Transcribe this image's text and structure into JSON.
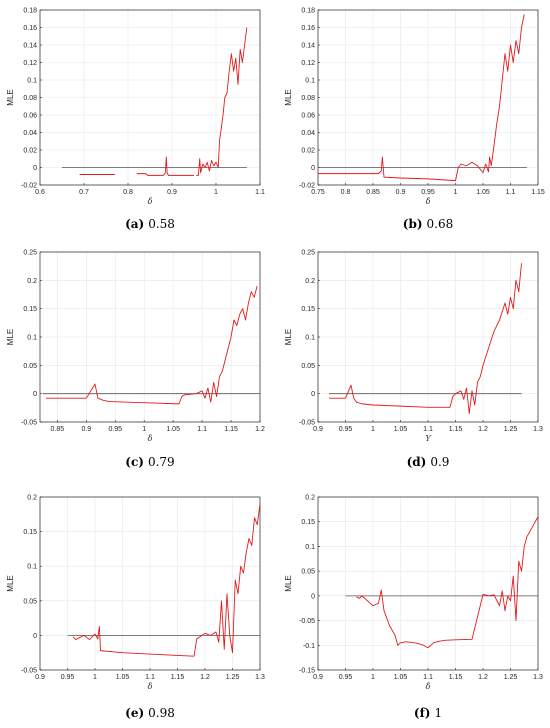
{
  "chart_data": [
    {
      "type": "line",
      "caption_tag": "(a)",
      "caption_value": "0.58",
      "xlabel": "δ",
      "ylabel": "MLE",
      "xlim": [
        0.6,
        1.1
      ],
      "ylim": [
        -0.02,
        0.18
      ],
      "xticks": [
        "0.6",
        "0.7",
        "0.8",
        "0.9",
        "1",
        "1.1"
      ],
      "yticks": [
        "-0.02",
        "0",
        "0.02",
        "0.04",
        "0.06",
        "0.08",
        "0.1",
        "0.12",
        "0.14",
        "0.16",
        "0.18"
      ],
      "grid": true,
      "zero_line": [
        0.65,
        1.07
      ],
      "x": [
        0.69,
        0.77,
        null,
        0.82,
        0.84,
        0.845,
        0.86,
        0.88,
        0.885,
        0.887,
        0.889,
        0.892,
        0.95,
        null,
        0.955,
        0.96,
        0.963,
        0.965,
        0.97,
        0.975,
        0.98,
        0.985,
        0.99,
        0.995,
        1.0,
        1.005,
        1.008,
        1.012,
        1.016,
        1.02,
        1.025,
        1.03,
        1.035,
        1.04,
        1.045,
        1.05,
        1.055,
        1.06,
        1.065,
        1.07
      ],
      "values": [
        -0.008,
        -0.008,
        null,
        -0.007,
        -0.007,
        -0.009,
        -0.009,
        -0.009,
        -0.006,
        0.012,
        -0.006,
        -0.009,
        -0.009,
        null,
        -0.009,
        -0.009,
        0.01,
        -0.006,
        0.004,
        0.0,
        0.006,
        -0.004,
        0.008,
        0.002,
        0.006,
        0.0,
        0.03,
        0.045,
        0.06,
        0.08,
        0.085,
        0.11,
        0.13,
        0.11,
        0.125,
        0.095,
        0.135,
        0.12,
        0.14,
        0.16
      ]
    },
    {
      "type": "line",
      "caption_tag": "(b)",
      "caption_value": "0.68",
      "xlabel": "δ",
      "ylabel": "MLE",
      "xlim": [
        0.75,
        1.15
      ],
      "ylim": [
        -0.02,
        0.18
      ],
      "xticks": [
        "0.75",
        "0.8",
        "0.85",
        "0.9",
        "0.95",
        "1",
        "1.05",
        "1.1",
        "1.15"
      ],
      "yticks": [
        "-0.02",
        "0",
        "0.02",
        "0.04",
        "0.06",
        "0.08",
        "0.1",
        "0.12",
        "0.14",
        "0.16",
        "0.18"
      ],
      "grid": true,
      "zero_line": [
        0.75,
        1.13
      ],
      "x": [
        0.75,
        0.86,
        0.865,
        0.867,
        0.87,
        0.9,
        0.95,
        1.0,
        1.005,
        1.01,
        1.02,
        1.03,
        1.04,
        1.05,
        1.055,
        1.06,
        1.062,
        1.065,
        1.07,
        1.075,
        1.08,
        1.085,
        1.09,
        1.095,
        1.1,
        1.105,
        1.11,
        1.115,
        1.12,
        1.125
      ],
      "values": [
        -0.007,
        -0.007,
        -0.004,
        0.012,
        -0.011,
        -0.012,
        -0.013,
        -0.015,
        0.0,
        0.004,
        0.002,
        0.006,
        0.002,
        -0.006,
        0.004,
        -0.005,
        0.012,
        0.002,
        0.025,
        0.05,
        0.07,
        0.1,
        0.13,
        0.11,
        0.14,
        0.12,
        0.145,
        0.13,
        0.16,
        0.175
      ]
    },
    {
      "type": "line",
      "caption_tag": "(c)",
      "caption_value": "0.79",
      "xlabel": "δ",
      "ylabel": "MLE",
      "xlim": [
        0.82,
        1.2
      ],
      "ylim": [
        -0.05,
        0.25
      ],
      "xticks": [
        "0.85",
        "0.9",
        "0.95",
        "1",
        "1.05",
        "1.1",
        "1.15",
        "1.2"
      ],
      "yticks": [
        "-0.05",
        "0",
        "0.05",
        "0.1",
        "0.15",
        "0.2",
        "0.25"
      ],
      "grid": true,
      "zero_line": [
        0.825,
        1.2
      ],
      "x": [
        0.83,
        0.87,
        0.9,
        0.915,
        0.92,
        0.93,
        0.94,
        1.0,
        1.06,
        1.065,
        1.07,
        1.09,
        1.1,
        1.105,
        1.11,
        1.115,
        1.12,
        1.125,
        1.13,
        1.135,
        1.14,
        1.145,
        1.15,
        1.155,
        1.16,
        1.165,
        1.17,
        1.175,
        1.18,
        1.185,
        1.19,
        1.195
      ],
      "values": [
        -0.008,
        -0.008,
        -0.008,
        0.017,
        -0.008,
        -0.012,
        -0.014,
        -0.016,
        -0.018,
        -0.005,
        -0.002,
        0.0,
        0.005,
        -0.008,
        0.01,
        -0.015,
        0.02,
        -0.005,
        0.03,
        0.04,
        0.06,
        0.08,
        0.1,
        0.13,
        0.12,
        0.14,
        0.15,
        0.13,
        0.16,
        0.18,
        0.17,
        0.19
      ]
    },
    {
      "type": "line",
      "caption_tag": "(d)",
      "caption_value": "0.9",
      "xlabel": "Υ",
      "ylabel": "MLE",
      "xlim": [
        0.9,
        1.3
      ],
      "ylim": [
        -0.05,
        0.25
      ],
      "xticks": [
        "0.9",
        "0.95",
        "1",
        "1.05",
        "1.1",
        "1.15",
        "1.2",
        "1.25",
        "1.3"
      ],
      "yticks": [
        "-0.05",
        "0",
        "0.05",
        "0.1",
        "0.15",
        "0.2",
        "0.25"
      ],
      "grid": true,
      "zero_line": [
        0.92,
        1.27
      ],
      "x": [
        0.92,
        0.95,
        0.96,
        0.965,
        0.97,
        0.98,
        1.0,
        1.05,
        1.1,
        1.14,
        1.145,
        1.15,
        1.16,
        1.165,
        1.17,
        1.175,
        1.18,
        1.185,
        1.19,
        1.195,
        1.2,
        1.21,
        1.22,
        1.23,
        1.24,
        1.245,
        1.25,
        1.255,
        1.26,
        1.265,
        1.27
      ],
      "values": [
        -0.008,
        -0.008,
        0.015,
        -0.008,
        -0.015,
        -0.018,
        -0.02,
        -0.022,
        -0.024,
        -0.024,
        -0.005,
        0.0,
        0.005,
        -0.01,
        0.01,
        -0.035,
        0.005,
        -0.02,
        0.02,
        0.03,
        0.05,
        0.08,
        0.11,
        0.13,
        0.16,
        0.14,
        0.17,
        0.15,
        0.2,
        0.18,
        0.23
      ]
    },
    {
      "type": "line",
      "caption_tag": "(e)",
      "caption_value": "0.98",
      "xlabel": "δ",
      "ylabel": "MLE",
      "xlim": [
        0.9,
        1.3
      ],
      "ylim": [
        -0.05,
        0.2
      ],
      "xticks": [
        "0.9",
        "0.95",
        "1",
        "1.05",
        "1.1",
        "1.15",
        "1.2",
        "1.25",
        "1.3"
      ],
      "yticks": [
        "-0.05",
        "0",
        "0.05",
        "0.1",
        "0.15",
        "0.2"
      ],
      "grid": true,
      "zero_line": [
        0.95,
        1.3
      ],
      "x": [
        0.96,
        0.965,
        0.97,
        0.98,
        0.99,
        1.0,
        1.005,
        1.008,
        1.01,
        1.05,
        1.1,
        1.15,
        1.18,
        1.185,
        1.2,
        1.21,
        1.22,
        1.225,
        1.23,
        1.235,
        1.24,
        1.245,
        1.25,
        1.255,
        1.26,
        1.265,
        1.27,
        1.275,
        1.28,
        1.285,
        1.29,
        1.295,
        1.3
      ],
      "values": [
        -0.002,
        -0.006,
        -0.004,
        0.0,
        -0.006,
        0.002,
        -0.005,
        0.013,
        -0.022,
        -0.025,
        -0.027,
        -0.029,
        -0.03,
        -0.005,
        0.003,
        0.0,
        0.005,
        -0.01,
        0.05,
        -0.02,
        0.06,
        0.0,
        -0.025,
        0.08,
        0.06,
        0.1,
        0.09,
        0.12,
        0.14,
        0.13,
        0.17,
        0.16,
        0.19
      ]
    },
    {
      "type": "line",
      "caption_tag": "(f)",
      "caption_value": "1",
      "xlabel": "δ",
      "ylabel": "MLE",
      "xlim": [
        0.9,
        1.3
      ],
      "ylim": [
        -0.15,
        0.2
      ],
      "xticks": [
        "0.9",
        "0.95",
        "1",
        "1.05",
        "1.1",
        "1.15",
        "1.2",
        "1.25",
        "1.3"
      ],
      "yticks": [
        "-0.15",
        "-0.1",
        "-0.05",
        "0",
        "0.05",
        "0.1",
        "0.15",
        "0.2"
      ],
      "grid": true,
      "zero_line": [
        0.95,
        1.3
      ],
      "x": [
        0.97,
        0.975,
        0.98,
        0.99,
        1.0,
        1.01,
        1.015,
        1.02,
        1.03,
        1.04,
        1.045,
        1.05,
        1.06,
        1.07,
        1.08,
        1.09,
        1.1,
        1.11,
        1.12,
        1.13,
        1.15,
        1.18,
        1.2,
        1.21,
        1.22,
        1.23,
        1.235,
        1.24,
        1.245,
        1.25,
        1.255,
        1.26,
        1.265,
        1.27,
        1.275,
        1.28,
        1.29,
        1.3
      ],
      "values": [
        -0.002,
        -0.005,
        0.0,
        -0.01,
        -0.02,
        -0.015,
        0.012,
        -0.03,
        -0.06,
        -0.08,
        -0.1,
        -0.095,
        -0.093,
        -0.094,
        -0.096,
        -0.099,
        -0.105,
        -0.095,
        -0.092,
        -0.09,
        -0.089,
        -0.088,
        0.003,
        0.0,
        0.002,
        -0.02,
        0.01,
        -0.03,
        0.0,
        -0.01,
        0.04,
        -0.05,
        0.07,
        0.05,
        0.1,
        0.12,
        0.14,
        0.16
      ]
    }
  ]
}
